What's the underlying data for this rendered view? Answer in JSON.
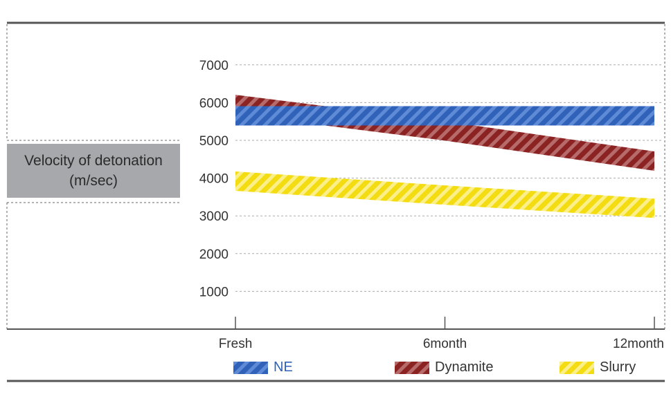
{
  "chart_data": {
    "type": "line",
    "categories": [
      "Fresh",
      "6month",
      "12month"
    ],
    "yticks": [
      "1000",
      "2000",
      "3000",
      "4000",
      "5000",
      "6000",
      "7000"
    ],
    "ylim": [
      0,
      7800
    ],
    "ylabel_line1": "Velocity of detonation",
    "ylabel_line2": "(m/sec)",
    "legend_position": "bottom",
    "series": [
      {
        "name": "NE",
        "values": [
          5650,
          5650,
          5650
        ],
        "color": "#2f62b8",
        "label_color": "#2f62b8"
      },
      {
        "name": "Dynamite",
        "values": [
          5950,
          5250,
          4450
        ],
        "color": "#8b2323",
        "label_color": "#333333"
      },
      {
        "name": "Slurry",
        "values": [
          3920,
          3550,
          3200
        ],
        "color": "#f4dc12",
        "label_color": "#333333"
      }
    ]
  }
}
